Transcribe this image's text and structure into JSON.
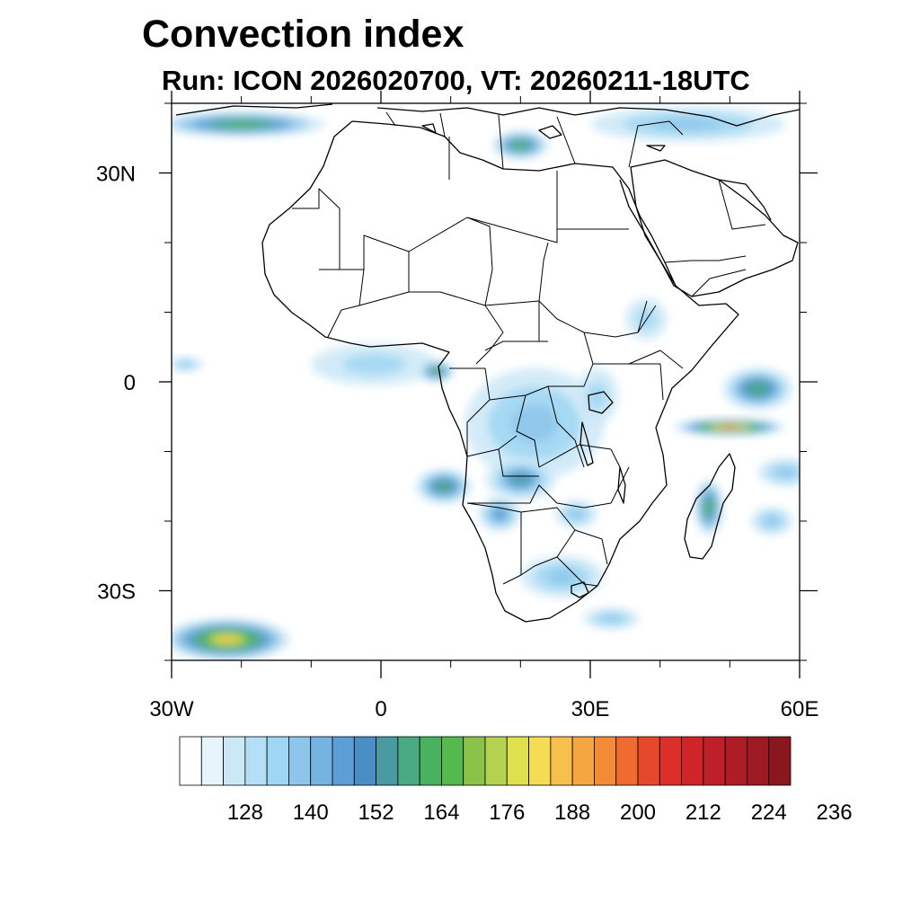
{
  "title": "Convection index",
  "subtitle": "Run: ICON 2026020700,  VT: 20260211-18UTC",
  "map": {
    "projection": "cylindrical-equidistant",
    "lon_range": [
      -30,
      60
    ],
    "lat_range": [
      -40,
      40
    ],
    "lon_ticks": [
      {
        "value": -30,
        "label": "30W"
      },
      {
        "value": 0,
        "label": "0"
      },
      {
        "value": 30,
        "label": "30E"
      },
      {
        "value": 60,
        "label": "60E"
      }
    ],
    "lat_ticks": [
      {
        "value": 30,
        "label": "30N"
      },
      {
        "value": 0,
        "label": "0"
      },
      {
        "value": -30,
        "label": "30S"
      }
    ],
    "minor_lon_step": 10,
    "minor_lat_step": 10
  },
  "colorbar": {
    "min": 116,
    "step": 4,
    "labels": [
      "128",
      "140",
      "152",
      "164",
      "176",
      "188",
      "200",
      "212",
      "224",
      "236"
    ],
    "label_values": [
      128,
      140,
      152,
      164,
      176,
      188,
      200,
      212,
      224,
      236
    ],
    "colors": [
      "#ffffff",
      "#e8f4fb",
      "#cbe8f7",
      "#b4e0f6",
      "#9fd6f3",
      "#8ec5ea",
      "#74b3e2",
      "#5c9ed6",
      "#4a8ec6",
      "#4a9aa4",
      "#4aab83",
      "#49b261",
      "#55ba4e",
      "#8bc34a",
      "#b3d24f",
      "#dfe04e",
      "#f5dc55",
      "#f7c04c",
      "#f5a640",
      "#f38b37",
      "#ef6b30",
      "#e5482a",
      "#dc2f2a",
      "#cf252a",
      "#bf1f29",
      "#ae1c25",
      "#9d1a21",
      "#8b171e"
    ]
  },
  "convection_regions": [
    {
      "name": "west-africa-coast",
      "lon": -1,
      "lat": 2.5,
      "rlon": 9,
      "rlat": 3,
      "level": 4
    },
    {
      "name": "gulf-of-guinea-core",
      "lon": 8,
      "lat": 1.5,
      "rlon": 2.5,
      "rlat": 1.5,
      "level": 13
    },
    {
      "name": "congo-basin",
      "lon": 22,
      "lat": -6,
      "rlon": 10,
      "rlat": 8,
      "level": 5
    },
    {
      "name": "zambia-angola",
      "lon": 20,
      "lat": -14,
      "rlon": 5,
      "rlat": 3,
      "level": 9
    },
    {
      "name": "angola-offshore",
      "lon": 9,
      "lat": -15,
      "rlon": 4,
      "rlat": 2.5,
      "level": 11
    },
    {
      "name": "namibia-botswana",
      "lon": 17,
      "lat": -19,
      "rlon": 3,
      "rlat": 2.5,
      "level": 8
    },
    {
      "name": "zimbabwe",
      "lon": 28,
      "lat": -19,
      "rlon": 3,
      "rlat": 2,
      "level": 5
    },
    {
      "name": "south-africa",
      "lon": 26,
      "lat": -28,
      "rlon": 6,
      "rlat": 3,
      "level": 5
    },
    {
      "name": "se-africa-offshore",
      "lon": 33,
      "lat": -34,
      "rlon": 4,
      "rlat": 1.5,
      "level": 5
    },
    {
      "name": "ethiopia",
      "lon": 38,
      "lat": 9,
      "rlon": 3,
      "rlat": 3,
      "level": 4
    },
    {
      "name": "lake-victoria",
      "lon": 31,
      "lat": -2,
      "rlon": 3,
      "rlat": 4,
      "level": 4
    },
    {
      "name": "indian-ocean-band",
      "lon": 50,
      "lat": -6.5,
      "rlon": 8,
      "rlat": 1.2,
      "level": 20
    },
    {
      "name": "indian-ocean-north",
      "lon": 54,
      "lat": -1,
      "rlon": 5,
      "rlat": 3,
      "level": 11
    },
    {
      "name": "madagascar-east",
      "lon": 58,
      "lat": -13,
      "rlon": 4,
      "rlat": 2,
      "level": 5
    },
    {
      "name": "madagascar-west",
      "lon": 47,
      "lat": -18,
      "rlon": 2,
      "rlat": 4,
      "level": 12
    },
    {
      "name": "south-atlantic-sw",
      "lon": -22,
      "lat": -37,
      "rlon": 9,
      "rlat": 3,
      "level": 17
    },
    {
      "name": "north-atlantic-nw",
      "lon": -20,
      "lat": 37,
      "rlon": 12,
      "rlat": 1.8,
      "level": 12
    },
    {
      "name": "mediterranean-libya",
      "lon": 20,
      "lat": 34,
      "rlon": 4,
      "rlat": 2,
      "level": 12
    },
    {
      "name": "mediterranean-east",
      "lon": 44,
      "lat": 37,
      "rlon": 14,
      "rlat": 2.5,
      "level": 5
    },
    {
      "name": "mid-atlantic",
      "lon": -28,
      "lat": 2.5,
      "rlon": 2.5,
      "rlat": 1,
      "level": 5
    },
    {
      "name": "mozambique-channel",
      "lon": 56,
      "lat": -20,
      "rlon": 3,
      "rlat": 2,
      "level": 5
    }
  ]
}
